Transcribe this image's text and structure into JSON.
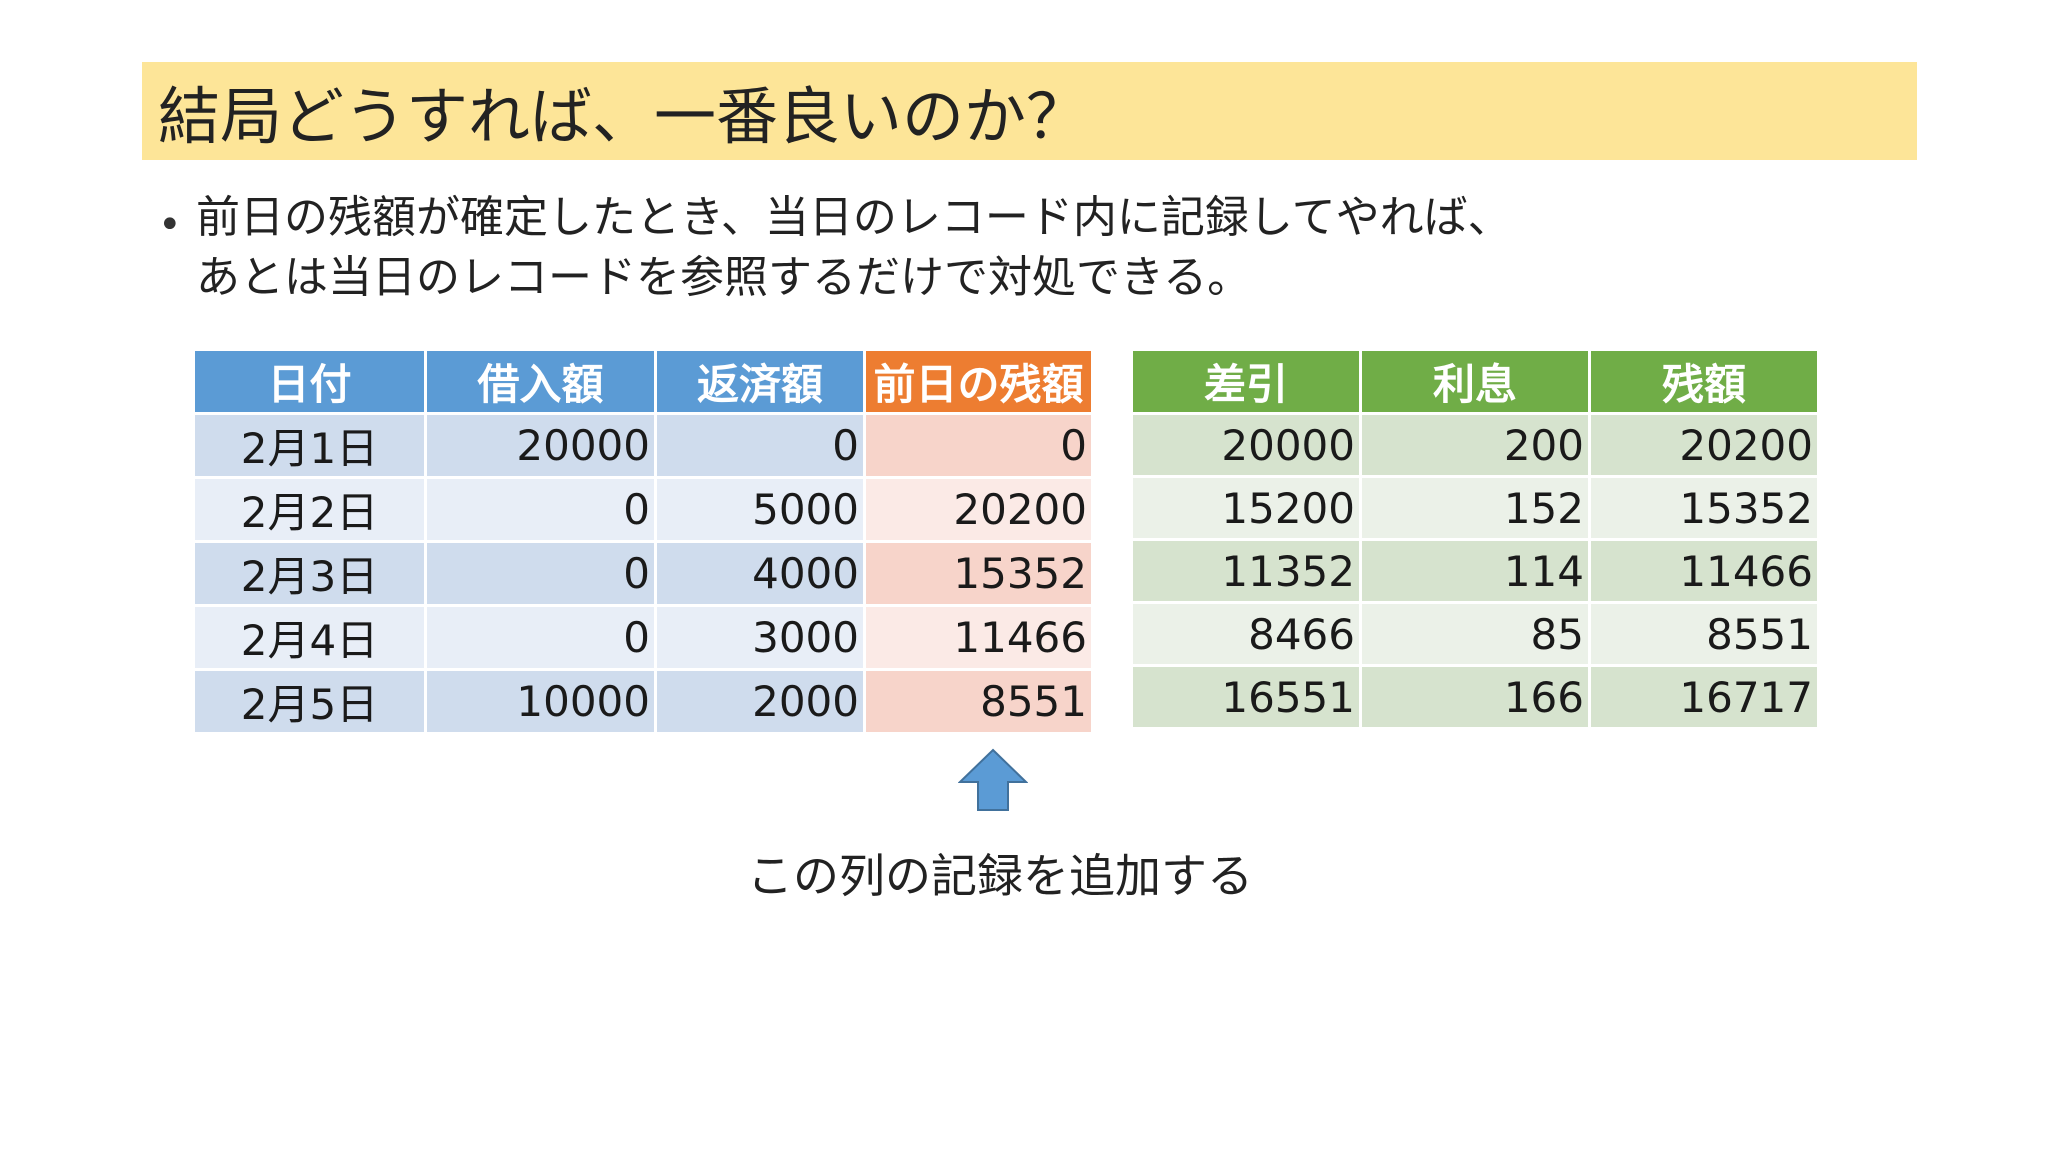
{
  "title": "結局どうすれば、一番良いのか？",
  "bullet": {
    "line1": "前日の残額が確定したとき、当日のレコード内に記録してやれば、",
    "line2": "あとは当日のレコードを参照するだけで対処できる。"
  },
  "left_table": {
    "headers": [
      "日付",
      "借入額",
      "返済額",
      "前日の残額"
    ],
    "rows": [
      [
        "2月1日",
        "20000",
        "0",
        "0"
      ],
      [
        "2月2日",
        "0",
        "5000",
        "20200"
      ],
      [
        "2月3日",
        "0",
        "4000",
        "15352"
      ],
      [
        "2月4日",
        "0",
        "3000",
        "11466"
      ],
      [
        "2月5日",
        "10000",
        "2000",
        "8551"
      ]
    ]
  },
  "right_table": {
    "headers": [
      "差引",
      "利息",
      "残額"
    ],
    "rows": [
      [
        "20000",
        "200",
        "20200"
      ],
      [
        "15200",
        "152",
        "15352"
      ],
      [
        "11352",
        "114",
        "11466"
      ],
      [
        "8466",
        "85",
        "8551"
      ],
      [
        "16551",
        "166",
        "16717"
      ]
    ]
  },
  "caption": "この列の記録を追加する",
  "colors": {
    "title_bg": "#fde598",
    "header_blue": "#5b9bd5",
    "header_orange": "#ed7d31",
    "header_green": "#70ad47",
    "arrow": "#5b9bd5"
  },
  "icons": {
    "arrow": "up-arrow-icon"
  }
}
